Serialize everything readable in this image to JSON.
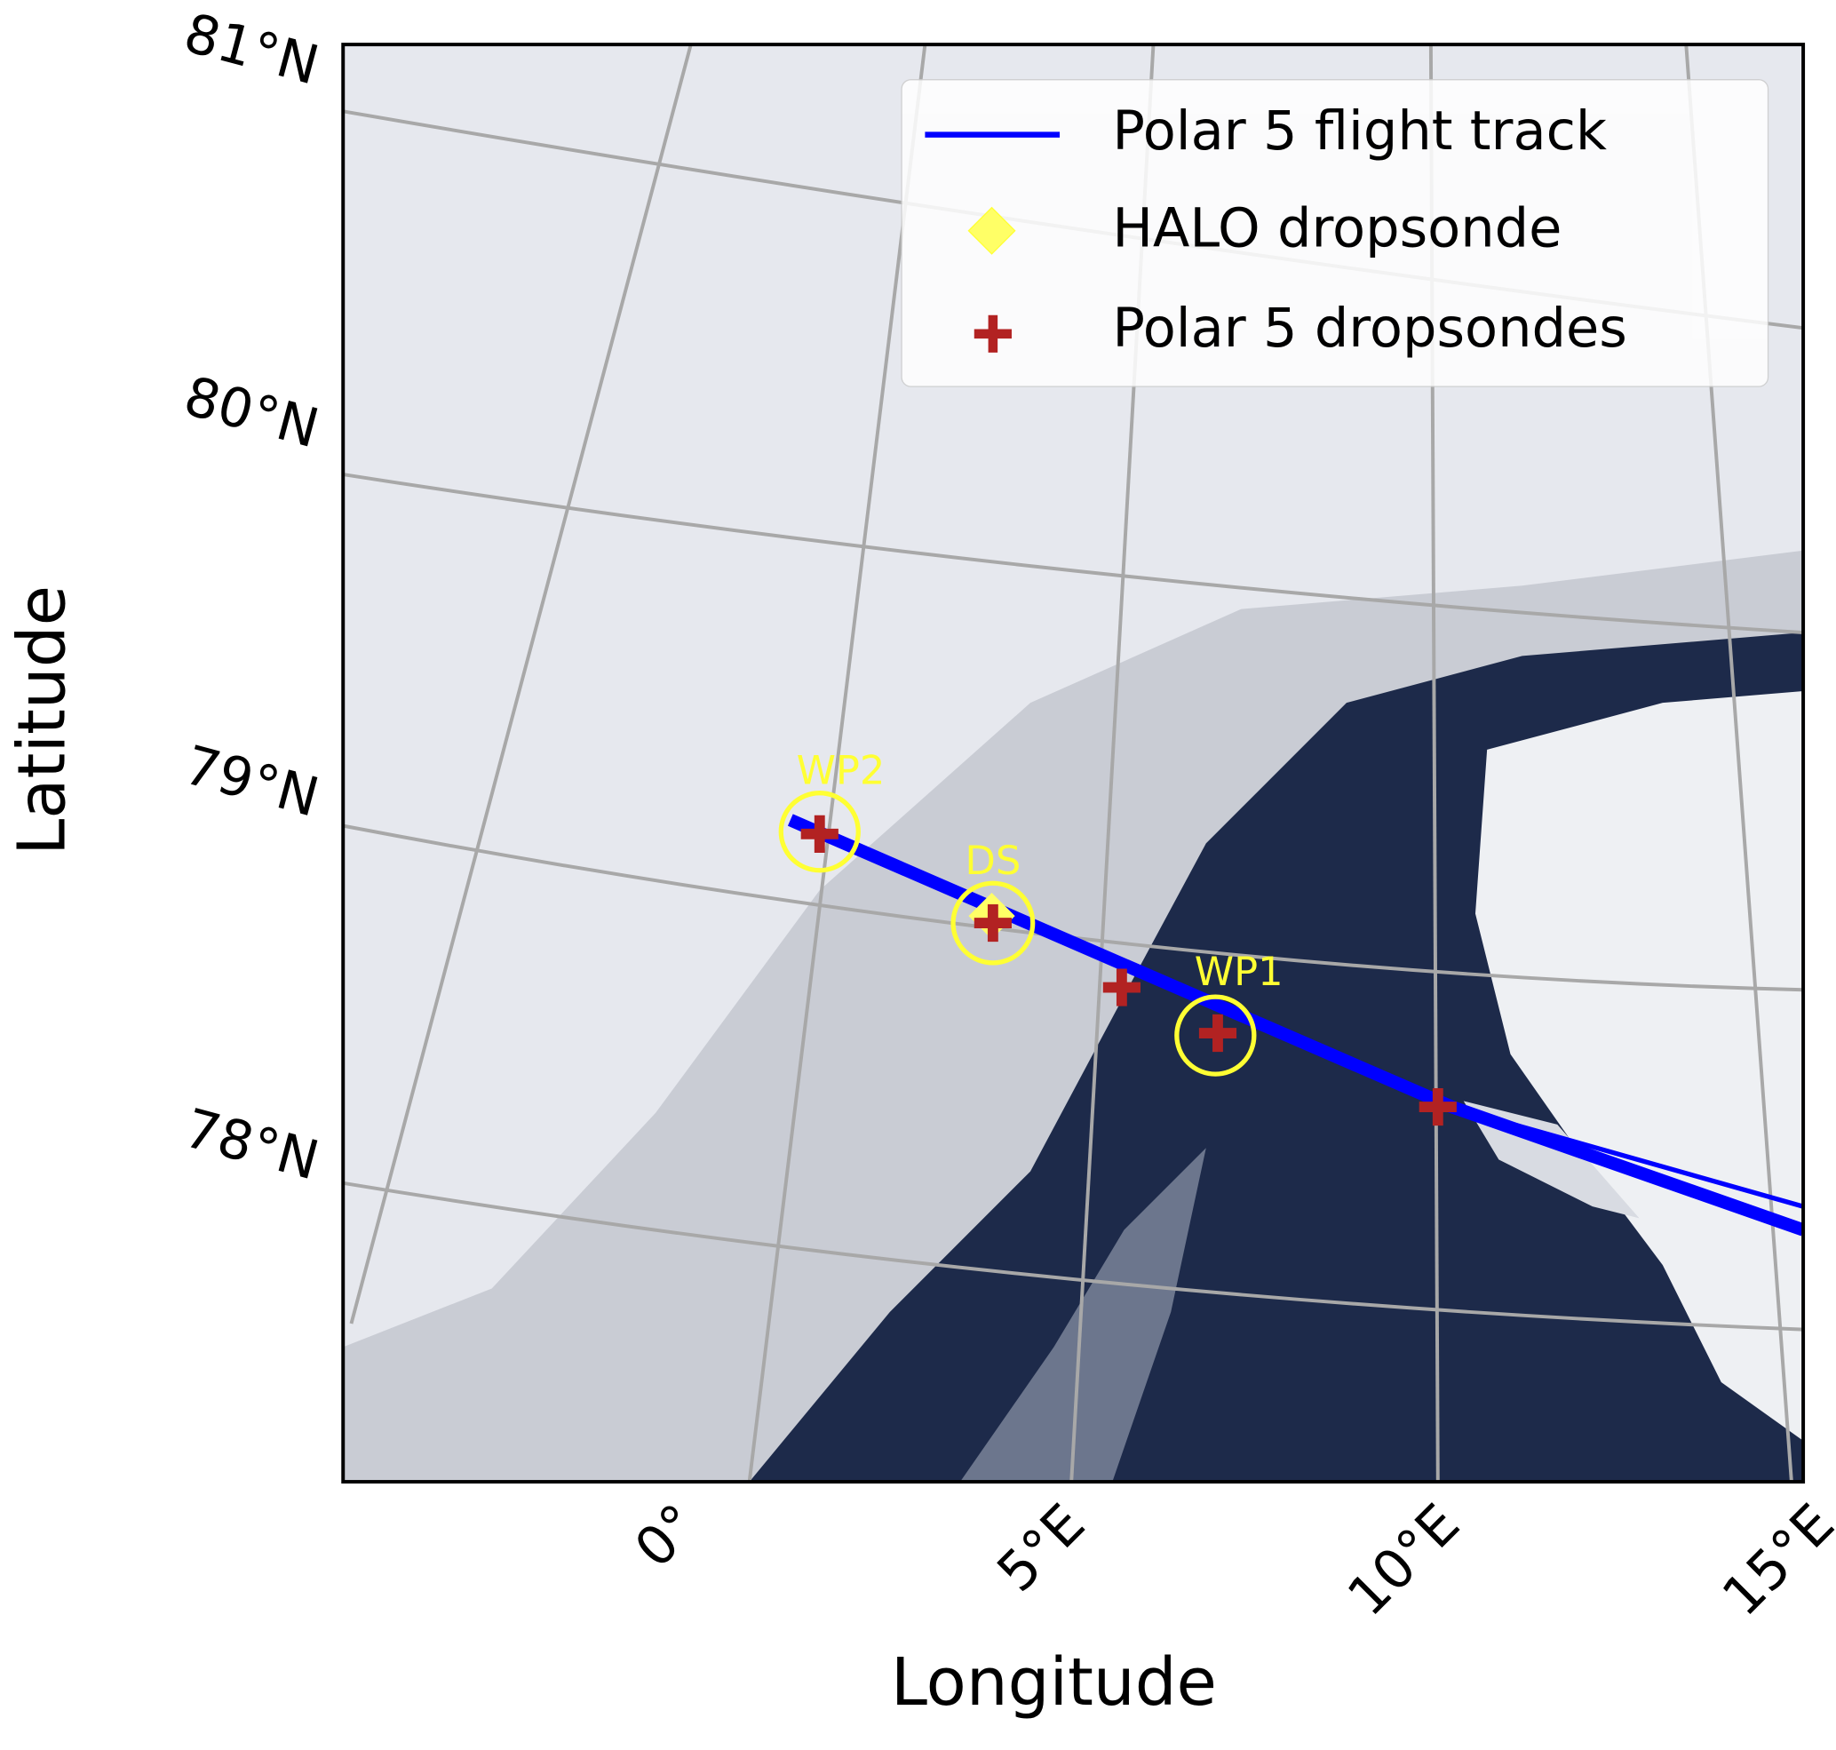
{
  "map": {
    "axes": {
      "y_label": "Latitude",
      "x_label": "Longitude",
      "y_tick_labels": [
        "81°N",
        "80°N",
        "79°N",
        "78°N"
      ],
      "x_tick_labels": [
        "0°",
        "5°E",
        "10°E",
        "15°E"
      ]
    },
    "legend": {
      "entries": [
        "Polar 5 flight track",
        "HALO dropsonde",
        "Polar 5 dropsondes"
      ]
    },
    "annotations": [
      "WP2",
      "DS",
      "WP1"
    ]
  }
}
